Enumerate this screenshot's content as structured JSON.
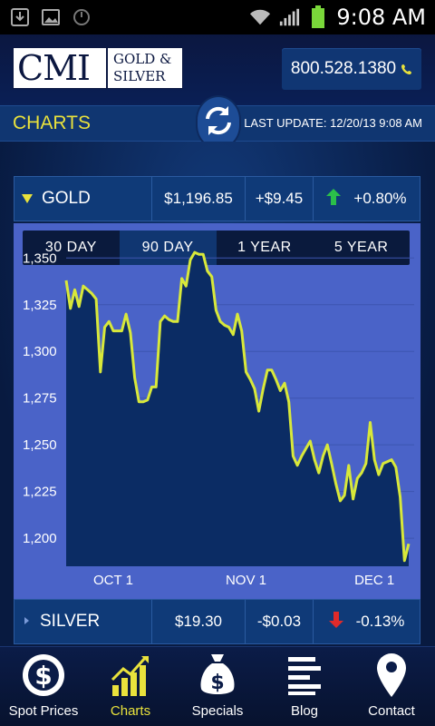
{
  "status_bar": {
    "time": "9:08 AM"
  },
  "header": {
    "logo_main": "CMI",
    "logo_line1": "GOLD &",
    "logo_line2": "SILVER",
    "phone": "800.528.1380"
  },
  "titlebar": {
    "title": "CHARTS",
    "last_update": "LAST UPDATE: 12/20/13 9:08 AM"
  },
  "gold": {
    "name": "GOLD",
    "price": "$1,196.85",
    "change": "+$9.45",
    "percent": "+0.80%",
    "direction": "up"
  },
  "silver": {
    "name": "SILVER",
    "price": "$19.30",
    "change": "-$0.03",
    "percent": "-0.13%",
    "direction": "down"
  },
  "period_tabs": [
    "30 DAY",
    "90 DAY",
    "1 YEAR",
    "5 YEAR"
  ],
  "active_period": "90 DAY",
  "chart_data": {
    "type": "area",
    "x_ticks": [
      "OCT 1",
      "NOV 1",
      "DEC 1"
    ],
    "y_ticks": [
      "1,350",
      "1,325",
      "1,300",
      "1,275",
      "1,250",
      "1,225",
      "1,200"
    ],
    "ylim": [
      1185,
      1355
    ],
    "grid": true,
    "line_color": "#d8e83a",
    "fill_color": "#0b2c64",
    "x_range": [
      "2013-09-20",
      "2013-12-20"
    ],
    "series": [
      {
        "values": [
          [
            "2013-09-20",
            1338
          ],
          [
            "2013-09-21",
            1323
          ],
          [
            "2013-09-22",
            1333
          ],
          [
            "2013-09-23",
            1324
          ],
          [
            "2013-09-24",
            1335
          ],
          [
            "2013-09-25",
            1333
          ],
          [
            "2013-09-26",
            1331
          ],
          [
            "2013-09-27",
            1328
          ],
          [
            "2013-09-28",
            1289
          ],
          [
            "2013-09-29",
            1313
          ],
          [
            "2013-09-30",
            1316
          ],
          [
            "2013-10-01",
            1311
          ],
          [
            "2013-10-02",
            1311
          ],
          [
            "2013-10-03",
            1311
          ],
          [
            "2013-10-04",
            1320
          ],
          [
            "2013-10-05",
            1310
          ],
          [
            "2013-10-06",
            1286
          ],
          [
            "2013-10-07",
            1273
          ],
          [
            "2013-10-08",
            1273
          ],
          [
            "2013-10-09",
            1274
          ],
          [
            "2013-10-10",
            1281
          ],
          [
            "2013-10-11",
            1281
          ],
          [
            "2013-10-12",
            1316
          ],
          [
            "2013-10-13",
            1319
          ],
          [
            "2013-10-14",
            1317
          ],
          [
            "2013-10-15",
            1316
          ],
          [
            "2013-10-16",
            1316
          ],
          [
            "2013-10-17",
            1339
          ],
          [
            "2013-10-18",
            1335
          ],
          [
            "2013-10-19",
            1349
          ],
          [
            "2013-10-20",
            1353
          ],
          [
            "2013-10-21",
            1352
          ],
          [
            "2013-10-22",
            1352
          ],
          [
            "2013-10-23",
            1343
          ],
          [
            "2013-10-24",
            1340
          ],
          [
            "2013-10-25",
            1322
          ],
          [
            "2013-10-26",
            1316
          ],
          [
            "2013-10-27",
            1314
          ],
          [
            "2013-10-28",
            1313
          ],
          [
            "2013-10-29",
            1309
          ],
          [
            "2013-10-30",
            1320
          ],
          [
            "2013-10-31",
            1311
          ],
          [
            "2013-11-01",
            1289
          ],
          [
            "2013-11-02",
            1285
          ],
          [
            "2013-11-03",
            1280
          ],
          [
            "2013-11-04",
            1268
          ],
          [
            "2013-11-05",
            1280
          ],
          [
            "2013-11-06",
            1290
          ],
          [
            "2013-11-07",
            1290
          ],
          [
            "2013-11-08",
            1285
          ],
          [
            "2013-11-09",
            1279
          ],
          [
            "2013-11-10",
            1283
          ],
          [
            "2013-11-11",
            1273
          ],
          [
            "2013-11-12",
            1244
          ],
          [
            "2013-11-13",
            1239
          ],
          [
            "2013-11-14",
            1244
          ],
          [
            "2013-11-15",
            1248
          ],
          [
            "2013-11-16",
            1252
          ],
          [
            "2013-11-17",
            1242
          ],
          [
            "2013-11-18",
            1235
          ],
          [
            "2013-11-19",
            1244
          ],
          [
            "2013-11-20",
            1250
          ],
          [
            "2013-11-21",
            1240
          ],
          [
            "2013-11-22",
            1229
          ],
          [
            "2013-11-23",
            1220
          ],
          [
            "2013-11-24",
            1223
          ],
          [
            "2013-11-25",
            1239
          ],
          [
            "2013-11-26",
            1221
          ],
          [
            "2013-11-27",
            1232
          ],
          [
            "2013-11-28",
            1235
          ],
          [
            "2013-11-29",
            1240
          ],
          [
            "2013-11-30",
            1262
          ],
          [
            "2013-12-01",
            1242
          ],
          [
            "2013-12-02",
            1234
          ],
          [
            "2013-12-03",
            1240
          ],
          [
            "2013-12-04",
            1241
          ],
          [
            "2013-12-05",
            1242
          ],
          [
            "2013-12-06",
            1238
          ],
          [
            "2013-12-07",
            1222
          ],
          [
            "2013-12-08",
            1188
          ],
          [
            "2013-12-09",
            1197
          ]
        ]
      }
    ]
  },
  "nav": [
    {
      "label": "Spot Prices",
      "icon": "dollar-coin-icon"
    },
    {
      "label": "Charts",
      "icon": "bar-chart-icon"
    },
    {
      "label": "Specials",
      "icon": "money-bag-icon"
    },
    {
      "label": "Blog",
      "icon": "blog-lines-icon"
    },
    {
      "label": "Contact",
      "icon": "map-pin-icon"
    }
  ],
  "active_nav": "Charts"
}
